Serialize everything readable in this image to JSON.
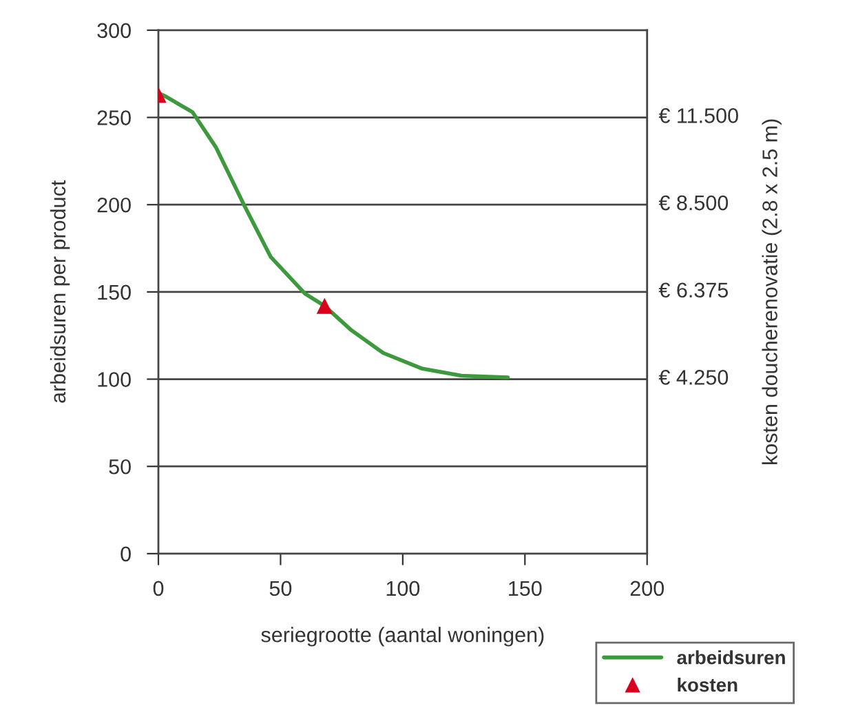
{
  "chart_data": {
    "type": "line",
    "xlabel": "seriegrootte (aantal woningen)",
    "ylabel": "arbeidsuren per product",
    "y2label": "kosten doucherenovatie (2.8 x 2.5 m)",
    "xlim": [
      0,
      200
    ],
    "xticks": [
      0,
      50,
      100,
      150,
      200
    ],
    "ylim": [
      0,
      300
    ],
    "yticks": [
      0,
      50,
      100,
      150,
      200,
      250,
      300
    ],
    "ref_lines": [
      {
        "axis": "y",
        "value": 50
      },
      {
        "axis": "y",
        "value": 100,
        "label": "€ 4.250"
      },
      {
        "axis": "y",
        "value": 150,
        "label": "€ 6.375"
      },
      {
        "axis": "y",
        "value": 200,
        "label": "€ 8.500"
      },
      {
        "axis": "y",
        "value": 250,
        "label": "€ 11.500"
      }
    ],
    "legend": "bottom right",
    "series": [
      {
        "name": "arbeidsuren",
        "color": "#3c9a3c",
        "marker": "none",
        "line_style": "solid",
        "x": [
          0,
          3,
          14,
          23.5,
          35,
          46,
          60,
          68,
          79,
          92,
          108,
          124,
          143
        ],
        "values": [
          264,
          262,
          253,
          233,
          200,
          170,
          149,
          142,
          128,
          115,
          106,
          102,
          101
        ]
      },
      {
        "name": "kosten",
        "type": "scatter",
        "color": "#d9001b",
        "marker": "triangle",
        "x": [
          0,
          68
        ],
        "values": [
          263,
          142
        ]
      }
    ]
  }
}
